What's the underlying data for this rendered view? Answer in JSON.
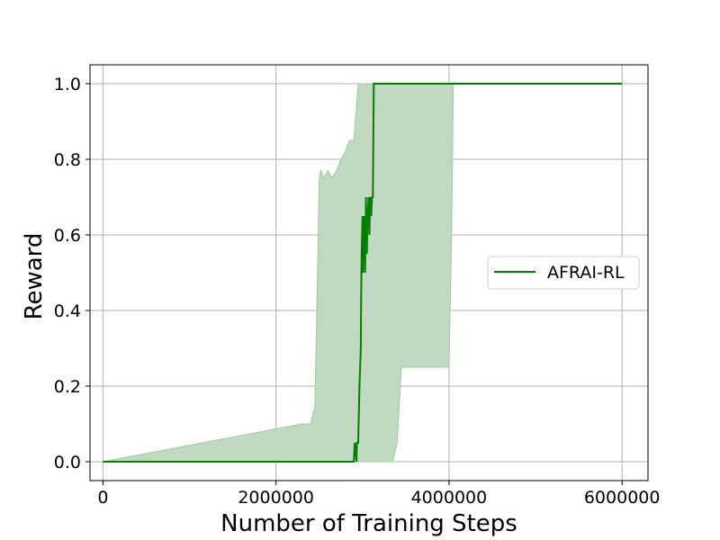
{
  "colors": {
    "line": "#008000",
    "band": "#c1d9c1",
    "band_edge": "#a3c9a3",
    "grid": "#b0b0b0",
    "axes": "#000000"
  },
  "chart_data": {
    "type": "line",
    "xlabel": "Number of Training Steps",
    "ylabel": "Reward",
    "xlim": [
      -150000,
      6300000
    ],
    "ylim": [
      -0.05,
      1.05
    ],
    "xticks": [
      0,
      2000000,
      4000000,
      6000000
    ],
    "xtick_labels": [
      "0",
      "2000000",
      "4000000",
      "6000000"
    ],
    "yticks": [
      0.0,
      0.2,
      0.4,
      0.6,
      0.8,
      1.0
    ],
    "ytick_labels": [
      "0.0",
      "0.2",
      "0.4",
      "0.6",
      "0.8",
      "1.0"
    ],
    "grid": true,
    "legend_position": "right",
    "series": [
      {
        "name": "AFRAI-RL",
        "x": [
          0,
          2900000,
          2910000,
          2930000,
          2935000,
          2950000,
          2955000,
          2965000,
          2980000,
          2985000,
          2990000,
          3000000,
          3005000,
          3010000,
          3020000,
          3030000,
          3040000,
          3050000,
          3060000,
          3070000,
          3080000,
          3090000,
          3100000,
          3110000,
          3120000,
          3130000,
          6000000
        ],
        "y": [
          0.0,
          0.0,
          0.05,
          0.0,
          0.05,
          0.05,
          0.1,
          0.2,
          0.3,
          0.45,
          0.55,
          0.65,
          0.5,
          0.6,
          0.65,
          0.5,
          0.7,
          0.55,
          0.65,
          0.7,
          0.6,
          0.7,
          0.65,
          0.7,
          0.7,
          1.0,
          1.0
        ]
      }
    ],
    "band": {
      "x": [
        0,
        2300000,
        2400000,
        2450000,
        2480000,
        2500000,
        2520000,
        2550000,
        2600000,
        2650000,
        2700000,
        2750000,
        2800000,
        2850000,
        2900000,
        2950000,
        3000000,
        3100000,
        3200000,
        3300000,
        3350000,
        3400000,
        3450000,
        3500000,
        3600000,
        3700000,
        3800000,
        3900000,
        4000000,
        4030000,
        4050000,
        6000000
      ],
      "upper": [
        0.0,
        0.1,
        0.1,
        0.15,
        0.5,
        0.75,
        0.77,
        0.75,
        0.77,
        0.75,
        0.77,
        0.8,
        0.82,
        0.85,
        0.85,
        1.0,
        1.0,
        1.0,
        1.0,
        1.0,
        1.0,
        1.0,
        1.0,
        1.0,
        1.0,
        1.0,
        1.0,
        1.0,
        1.0,
        1.0,
        1.0,
        1.0
      ],
      "lower": [
        0.0,
        0.0,
        0.0,
        0.0,
        0.0,
        0.0,
        0.0,
        0.0,
        0.0,
        0.0,
        0.0,
        0.0,
        0.0,
        0.0,
        0.0,
        0.0,
        0.0,
        0.0,
        0.0,
        0.0,
        0.0,
        0.05,
        0.25,
        0.25,
        0.25,
        0.25,
        0.25,
        0.25,
        0.25,
        0.6,
        1.0,
        1.0
      ]
    }
  }
}
